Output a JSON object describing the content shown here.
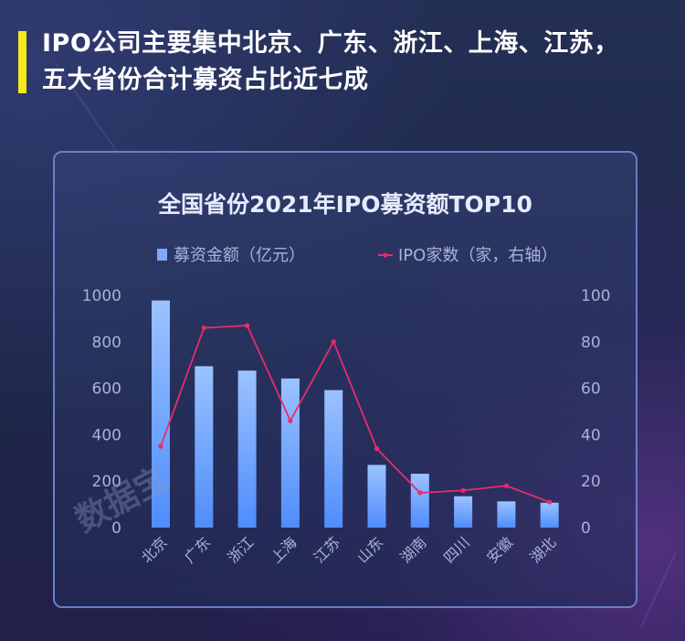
{
  "page": {
    "title_line1": "IPO公司主要集中北京、广东、浙江、上海、江苏，",
    "title_line2": "五大省份合计募资占比近七成",
    "watermark": "数据宝"
  },
  "colors": {
    "bar_top": "#9cc2ff",
    "bar_bottom": "#4f8dfb",
    "line": "#e62d6b",
    "axis_text": "#a9b3d6",
    "title_text": "#e6ebff",
    "accent": "#f4e91b"
  },
  "chart_data": {
    "type": "bar",
    "title": "全国省份2021年IPO募资额TOP10",
    "categories": [
      "北京",
      "广东",
      "浙江",
      "上海",
      "江苏",
      "山东",
      "湖南",
      "四川",
      "安徽",
      "湖北"
    ],
    "series": [
      {
        "name": "募资金额（亿元）",
        "type": "bar",
        "axis": "left",
        "values": [
          978,
          695,
          676,
          642,
          592,
          270,
          232,
          135,
          113,
          107
        ]
      },
      {
        "name": "IPO家数（家，右轴）",
        "type": "line",
        "axis": "right",
        "values": [
          35,
          86,
          87,
          46,
          80,
          34,
          15,
          16,
          18,
          11
        ]
      }
    ],
    "y_left": {
      "min": 0,
      "max": 1000,
      "ticks": [
        0,
        200,
        400,
        600,
        800,
        1000
      ]
    },
    "y_right": {
      "min": 0,
      "max": 100,
      "ticks": [
        0,
        20,
        40,
        60,
        80,
        100
      ]
    },
    "legend_position": "top",
    "grid": false
  }
}
